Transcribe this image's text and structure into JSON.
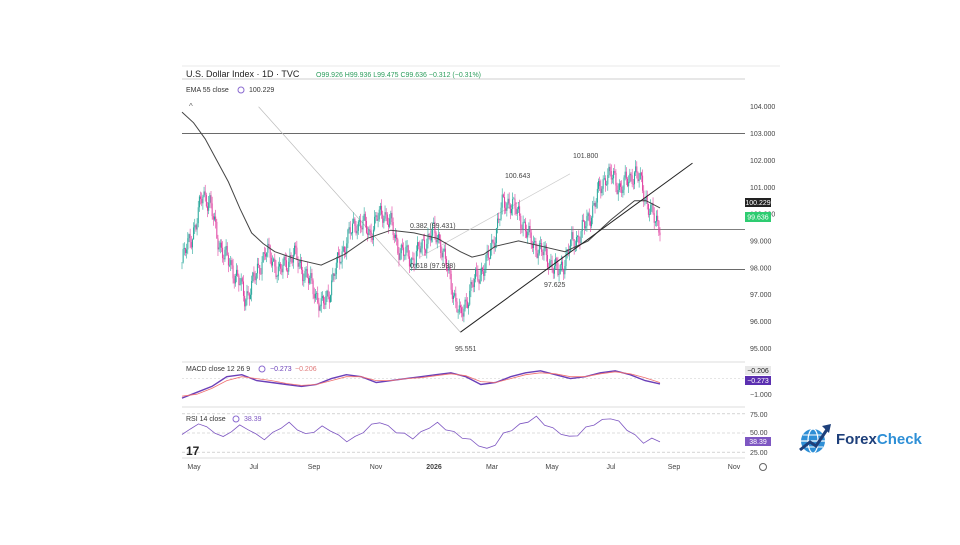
{
  "header": {
    "symbol": "U.S. Dollar Index · 1D · TVC",
    "ohlc": "O99.926  H99.936  L99.475  C99.636  −0.312 (−0.31%)"
  },
  "indicators": {
    "ema_label": "EMA 55 close",
    "ema_value": "100.229",
    "macd_label": "MACD close 12 26 9",
    "macd_value1": "−0.273",
    "macd_value2": "−0.206",
    "rsi_label": "RSI 14 close",
    "rsi_value": "38.39"
  },
  "price_tags": {
    "ema": "100.229",
    "last": "99.636",
    "hidden": "100.000"
  },
  "macd_tags": {
    "signal": "−0.206",
    "macd": "−0.273",
    "tick": "−1.000"
  },
  "rsi_tags": {
    "value": "38.39",
    "t75": "75.00",
    "t50": "50.00",
    "t25": "25.00"
  },
  "annotations": {
    "high_1": "101.800",
    "high_2": "100.643",
    "low_1": "95.551",
    "low_2": "97.625",
    "fib_382": "0.382 (99.431)",
    "fib_618": "0.618 (97.938)"
  },
  "xaxis_labels": [
    "May",
    "Jul",
    "Sep",
    "Nov",
    "2026",
    "Mar",
    "May",
    "Jul",
    "Sep",
    "Nov"
  ],
  "brand": {
    "name_a": "Forex",
    "name_b": "Check"
  },
  "colors": {
    "up": "#26a69a",
    "down": "#e040a0",
    "ema": "#444444",
    "macd": "#6a3fb8",
    "signal": "#f07070",
    "rsi": "#7e57c2",
    "hline": "#555555",
    "trend": "#222222"
  },
  "chart_data": [
    {
      "type": "candlestick",
      "title": "U.S. Dollar Index · 1D · TVC",
      "y_ticks": [
        "104.000",
        "103.000",
        "102.000",
        "101.000",
        "100.000",
        "99.000",
        "98.000",
        "97.000",
        "96.000",
        "95.000"
      ],
      "ylim": [
        94.9,
        104.4
      ],
      "close_path": [
        [
          0,
          98.2
        ],
        [
          6,
          99.0
        ],
        [
          12,
          99.6
        ],
        [
          18,
          100.8
        ],
        [
          24,
          100.4
        ],
        [
          30,
          99.2
        ],
        [
          36,
          98.5
        ],
        [
          42,
          98.1
        ],
        [
          48,
          97.6
        ],
        [
          54,
          96.9
        ],
        [
          60,
          97.3
        ],
        [
          66,
          98.0
        ],
        [
          72,
          98.6
        ],
        [
          78,
          98.3
        ],
        [
          84,
          97.8
        ],
        [
          90,
          98.2
        ],
        [
          96,
          98.5
        ],
        [
          102,
          98.1
        ],
        [
          108,
          97.6
        ],
        [
          114,
          97.2
        ],
        [
          120,
          96.5
        ],
        [
          126,
          97.0
        ],
        [
          132,
          97.9
        ],
        [
          138,
          98.6
        ],
        [
          144,
          99.2
        ],
        [
          150,
          99.7
        ],
        [
          156,
          99.6
        ],
        [
          162,
          99.3
        ],
        [
          168,
          99.8
        ],
        [
          174,
          100.1
        ],
        [
          180,
          99.6
        ],
        [
          186,
          98.8
        ],
        [
          192,
          98.5
        ],
        [
          198,
          98.3
        ],
        [
          204,
          98.6
        ],
        [
          210,
          99.0
        ],
        [
          216,
          99.3
        ],
        [
          222,
          99.1
        ],
        [
          228,
          98.0
        ],
        [
          234,
          97.1
        ],
        [
          240,
          96.1
        ],
        [
          246,
          96.9
        ],
        [
          252,
          97.5
        ],
        [
          258,
          97.9
        ],
        [
          264,
          98.3
        ],
        [
          270,
          99.3
        ],
        [
          276,
          100.3
        ],
        [
          282,
          100.5
        ],
        [
          288,
          100.1
        ],
        [
          294,
          99.7
        ],
        [
          300,
          99.0
        ],
        [
          306,
          98.8
        ],
        [
          312,
          98.5
        ],
        [
          318,
          98.2
        ],
        [
          324,
          97.8
        ],
        [
          330,
          98.3
        ],
        [
          336,
          98.9
        ],
        [
          342,
          99.2
        ],
        [
          348,
          99.6
        ],
        [
          354,
          100.2
        ],
        [
          360,
          100.9
        ],
        [
          366,
          101.5
        ],
        [
          372,
          101.3
        ],
        [
          378,
          101.0
        ],
        [
          384,
          101.2
        ],
        [
          390,
          101.6
        ],
        [
          396,
          101.1
        ],
        [
          402,
          100.3
        ],
        [
          408,
          99.7
        ],
        [
          412,
          99.64
        ]
      ],
      "ema55": [
        [
          0,
          103.8
        ],
        [
          10,
          103.4
        ],
        [
          20,
          102.8
        ],
        [
          30,
          102.0
        ],
        [
          40,
          101.2
        ],
        [
          50,
          100.2
        ],
        [
          60,
          99.3
        ],
        [
          70,
          98.9
        ],
        [
          80,
          98.6
        ],
        [
          100,
          98.3
        ],
        [
          120,
          98.1
        ],
        [
          140,
          98.5
        ],
        [
          160,
          99.1
        ],
        [
          180,
          99.4
        ],
        [
          200,
          99.3
        ],
        [
          220,
          99.1
        ],
        [
          240,
          98.6
        ],
        [
          250,
          98.4
        ],
        [
          260,
          98.5
        ],
        [
          270,
          98.8
        ],
        [
          290,
          99.0
        ],
        [
          310,
          98.8
        ],
        [
          330,
          98.6
        ],
        [
          350,
          99.0
        ],
        [
          370,
          99.8
        ],
        [
          390,
          100.5
        ],
        [
          400,
          100.5
        ],
        [
          412,
          100.23
        ]
      ],
      "support_level": 99.431,
      "resistance_level": 103.0,
      "fib_618_level": 97.938,
      "trendline": [
        [
          240,
          95.6
        ],
        [
          440,
          101.9
        ]
      ],
      "fib_line": [
        [
          66,
          104.0
        ],
        [
          240,
          95.6
        ]
      ],
      "n_bars": 413,
      "xlabel": "",
      "ylabel": ""
    },
    {
      "type": "line",
      "title": "MACD close 12 26 9",
      "series": [
        {
          "values": [
            -1.0,
            -0.7,
            -0.4,
            0.1,
            0.2,
            -0.1,
            -0.2,
            -0.3,
            -0.4,
            -0.3,
            0.0,
            0.2,
            0.1,
            -0.2,
            -0.1,
            0.0,
            0.1,
            0.2,
            0.3,
            0.1,
            -0.3,
            -0.2,
            0.1,
            0.3,
            0.4,
            0.2,
            0.0,
            0.1,
            0.3,
            0.4,
            0.2,
            -0.1,
            -0.273
          ]
        },
        {
          "values": [
            -0.9,
            -0.8,
            -0.5,
            -0.1,
            0.1,
            0.0,
            -0.1,
            -0.25,
            -0.35,
            -0.3,
            -0.1,
            0.1,
            0.1,
            -0.1,
            -0.1,
            0.0,
            0.05,
            0.15,
            0.25,
            0.15,
            -0.15,
            -0.2,
            0.0,
            0.2,
            0.3,
            0.25,
            0.1,
            0.1,
            0.25,
            0.35,
            0.25,
            0.05,
            -0.206
          ]
        }
      ],
      "ylim": [
        -1.2,
        0.7
      ]
    },
    {
      "type": "line",
      "title": "RSI 14 close",
      "y_ticks": [
        "75.00",
        "50.00",
        "25.00"
      ],
      "series": [
        {
          "values": [
            48,
            55,
            62,
            58,
            50,
            45,
            52,
            60,
            55,
            48,
            42,
            50,
            57,
            63,
            55,
            48,
            52,
            58,
            54,
            46,
            40,
            44,
            52,
            60,
            65,
            58,
            52,
            48,
            44,
            50,
            58,
            62,
            56,
            50,
            45,
            40,
            35,
            28,
            36,
            48,
            55,
            60,
            66,
            70,
            62,
            55,
            50,
            44,
            48,
            56,
            62,
            66,
            70,
            64,
            55,
            46,
            38,
            42,
            38.39
          ]
        }
      ],
      "ylim": [
        20,
        80
      ]
    }
  ]
}
